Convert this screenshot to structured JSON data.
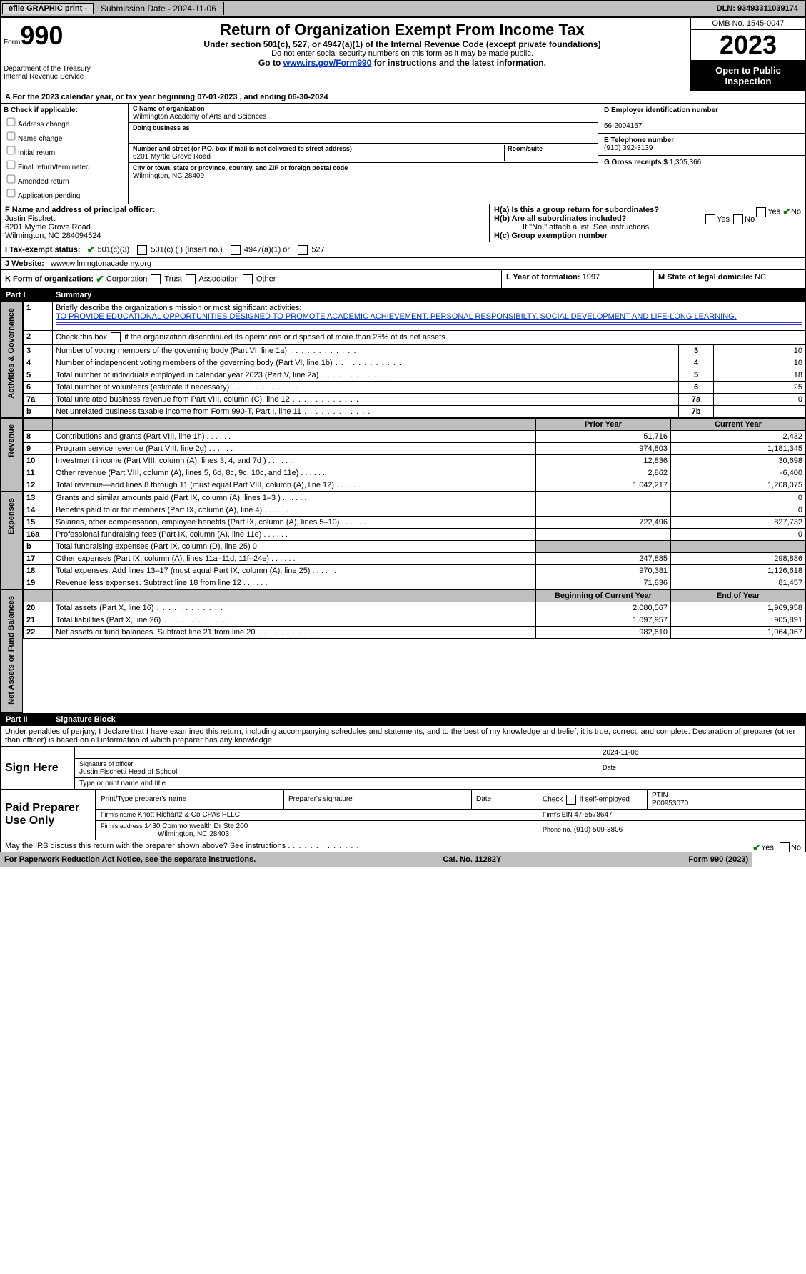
{
  "topbar": {
    "efile": "efile GRAPHIC print -",
    "submission_label": "Submission Date - 2024-11-06",
    "dln": "DLN: 93493311039174"
  },
  "header": {
    "form_label": "Form",
    "form_no": "990",
    "dept": "Department of the Treasury\nInternal Revenue Service",
    "title": "Return of Organization Exempt From Income Tax",
    "sub": "Under section 501(c), 527, or 4947(a)(1) of the Internal Revenue Code (except private foundations)",
    "note1": "Do not enter social security numbers on this form as it may be made public.",
    "note2_pre": "Go to ",
    "note2_link": "www.irs.gov/Form990",
    "note2_post": " for instructions and the latest information.",
    "omb": "OMB No. 1545-0047",
    "year": "2023",
    "open": "Open to Public Inspection"
  },
  "period_line": "A For the 2023 calendar year, or tax year beginning 07-01-2023   , and ending 06-30-2024",
  "boxB": {
    "label": "B Check if applicable:",
    "opts": [
      "Address change",
      "Name change",
      "Initial return",
      "Final return/terminated",
      "Amended return",
      "Application pending"
    ]
  },
  "boxC": {
    "name_lab": "C Name of organization",
    "name": "Wilmington Academy of Arts and Sciences",
    "dba_lab": "Doing business as",
    "dba": "",
    "street_lab": "Number and street (or P.O. box if mail is not delivered to street address)",
    "street": "6201 Myrtle Grove Road",
    "room_lab": "Room/suite",
    "city_lab": "City or town, state or province, country, and ZIP or foreign postal code",
    "city": "Wilmington, NC  28409"
  },
  "boxD": {
    "lab": "D Employer identification number",
    "val": "56-2004167"
  },
  "boxE": {
    "lab": "E Telephone number",
    "val": "(910) 392-3139"
  },
  "boxG": {
    "lab": "G Gross receipts $",
    "val": "1,305,366"
  },
  "boxF": {
    "lab": "F  Name and address of principal officer:",
    "name": "Justin Fischetti",
    "addr1": "6201 Myrtle Grove Road",
    "addr2": "Wilmington, NC  284094524"
  },
  "boxH": {
    "a": "H(a)  Is this a group return for subordinates?",
    "b": "H(b)  Are all subordinates included?",
    "b_note": "If \"No,\" attach a list. See instructions.",
    "c": "H(c)  Group exemption number "
  },
  "boxI_lab": "I   Tax-exempt status:",
  "boxI_opts": {
    "a": "501(c)(3)",
    "b": "501(c) (  ) (insert no.)",
    "c": "4947(a)(1) or",
    "d": "527"
  },
  "boxJ_lab": "J   Website: ",
  "boxJ_val": "www.wilmingtonacademy.org",
  "boxK_lab": "K Form of organization:",
  "boxK_opts": {
    "a": "Corporation",
    "b": "Trust",
    "c": "Association",
    "d": "Other"
  },
  "boxL": {
    "lab": "L Year of formation:",
    "val": "1997"
  },
  "boxM": {
    "lab": "M State of legal domicile:",
    "val": "NC"
  },
  "part1": {
    "pt": "Part I",
    "title": "Summary"
  },
  "line1": {
    "no": "1",
    "lab": "Briefly describe the organization's mission or most significant activities:",
    "val": "TO PROVIDE EDUCATIONAL OPPORTUNITIES DESIGNED TO PROMOTE ACADEMIC ACHIEVEMENT, PERSONAL RESPONSIBILTY, SOCIAL DEVELOPMENT AND LIFE-LONG LEARNING."
  },
  "line2": {
    "no": "2",
    "lab": "Check this box       if the organization discontinued its operations or disposed of more than 25% of its net assets."
  },
  "govlines": [
    {
      "no": "3",
      "lab": "Number of voting members of the governing body (Part VI, line 1a)",
      "col": "3",
      "val": "10"
    },
    {
      "no": "4",
      "lab": "Number of independent voting members of the governing body (Part VI, line 1b)",
      "col": "4",
      "val": "10"
    },
    {
      "no": "5",
      "lab": "Total number of individuals employed in calendar year 2023 (Part V, line 2a)",
      "col": "5",
      "val": "18"
    },
    {
      "no": "6",
      "lab": "Total number of volunteers (estimate if necessary)",
      "col": "6",
      "val": "25"
    },
    {
      "no": "7a",
      "lab": "Total unrelated business revenue from Part VIII, column (C), line 12",
      "col": "7a",
      "val": "0"
    },
    {
      "no": "b",
      "lab": "Net unrelated business taxable income from Form 990-T, Part I, line 11",
      "col": "7b",
      "val": ""
    }
  ],
  "colhdr": {
    "prior": "Prior Year",
    "curr": "Current Year"
  },
  "revenue": [
    {
      "no": "8",
      "lab": "Contributions and grants (Part VIII, line 1h)",
      "p": "51,716",
      "c": "2,432"
    },
    {
      "no": "9",
      "lab": "Program service revenue (Part VIII, line 2g)",
      "p": "974,803",
      "c": "1,181,345"
    },
    {
      "no": "10",
      "lab": "Investment income (Part VIII, column (A), lines 3, 4, and 7d )",
      "p": "12,836",
      "c": "30,698"
    },
    {
      "no": "11",
      "lab": "Other revenue (Part VIII, column (A), lines 5, 6d, 8c, 9c, 10c, and 11e)",
      "p": "2,862",
      "c": "-6,400"
    },
    {
      "no": "12",
      "lab": "Total revenue—add lines 8 through 11 (must equal Part VIII, column (A), line 12)",
      "p": "1,042,217",
      "c": "1,208,075"
    }
  ],
  "expenses": [
    {
      "no": "13",
      "lab": "Grants and similar amounts paid (Part IX, column (A), lines 1–3 )",
      "p": "",
      "c": "0"
    },
    {
      "no": "14",
      "lab": "Benefits paid to or for members (Part IX, column (A), line 4)",
      "p": "",
      "c": "0"
    },
    {
      "no": "15",
      "lab": "Salaries, other compensation, employee benefits (Part IX, column (A), lines 5–10)",
      "p": "722,496",
      "c": "827,732"
    },
    {
      "no": "16a",
      "lab": "Professional fundraising fees (Part IX, column (A), line 11e)",
      "p": "",
      "c": "0"
    },
    {
      "no": "b",
      "lab": "Total fundraising expenses (Part IX, column (D), line 25) 0",
      "grey": true
    },
    {
      "no": "17",
      "lab": "Other expenses (Part IX, column (A), lines 11a–11d, 11f–24e)",
      "p": "247,885",
      "c": "298,886"
    },
    {
      "no": "18",
      "lab": "Total expenses. Add lines 13–17 (must equal Part IX, column (A), line 25)",
      "p": "970,381",
      "c": "1,126,618"
    },
    {
      "no": "19",
      "lab": "Revenue less expenses. Subtract line 18 from line 12",
      "p": "71,836",
      "c": "81,457"
    }
  ],
  "colhdr2": {
    "prior": "Beginning of Current Year",
    "curr": "End of Year"
  },
  "netassets": [
    {
      "no": "20",
      "lab": "Total assets (Part X, line 16)",
      "p": "2,080,567",
      "c": "1,969,958"
    },
    {
      "no": "21",
      "lab": "Total liabilities (Part X, line 26)",
      "p": "1,097,957",
      "c": "905,891"
    },
    {
      "no": "22",
      "lab": "Net assets or fund balances. Subtract line 21 from line 20",
      "p": "982,610",
      "c": "1,064,067"
    }
  ],
  "vlabels": {
    "gov": "Activities & Governance",
    "rev": "Revenue",
    "exp": "Expenses",
    "net": "Net Assets or Fund Balances"
  },
  "part2": {
    "pt": "Part II",
    "title": "Signature Block"
  },
  "perjury": "Under penalties of perjury, I declare that I have examined this return, including accompanying schedules and statements, and to the best of my knowledge and belief, it is true, correct, and complete. Declaration of preparer (other than officer) is based on all information of which preparer has any knowledge.",
  "sign": {
    "here": "Sign Here",
    "date": "2024-11-06",
    "siglab": "Signature of officer",
    "name": "Justin Fischetti  Head of School",
    "typelab": "Type or print name and title",
    "datelab": "Date"
  },
  "prep": {
    "title": "Paid Preparer Use Only",
    "h1": "Print/Type preparer's name",
    "h2": "Preparer's signature",
    "h3": "Date",
    "h4": "Check        if self-employed",
    "h5": "PTIN",
    "ptin": "P00953070",
    "firmlab": "Firm's name   ",
    "firm": "Knott Richartz & Co CPAs PLLC",
    "einlab": "Firm's EIN  ",
    "ein": "47-5578647",
    "addrlab": "Firm's address ",
    "addr": "1430 Commonwealth Dr Ste 200",
    "city": "Wilmington, NC  28403",
    "phonelab": "Phone no.",
    "phone": "(910) 509-3806"
  },
  "discuss": "May the IRS discuss this return with the preparer shown above? See instructions .",
  "footer": {
    "l": "For Paperwork Reduction Act Notice, see the separate instructions.",
    "m": "Cat. No. 11282Y",
    "r": "Form 990 (2023)"
  }
}
